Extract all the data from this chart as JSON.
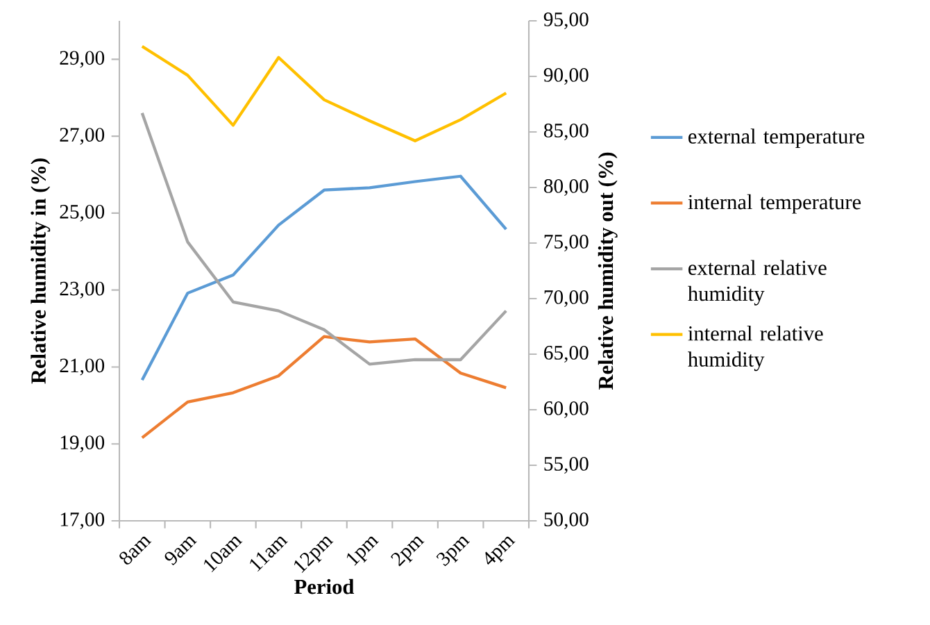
{
  "chart_data": {
    "type": "line",
    "xlabel": "Period",
    "ylabel": "Relative humidity in (%)",
    "y2label": "Relative humidity out (%)",
    "categories": [
      "8am",
      "9am",
      "10am",
      "11am",
      "12pm",
      "1pm",
      "2pm",
      "3pm",
      "4pm"
    ],
    "series": [
      {
        "name": "external temperature",
        "color": "#5b9bd5",
        "values": [
          20.66,
          22.92,
          23.39,
          24.69,
          25.6,
          25.66,
          25.82,
          25.96,
          24.58
        ]
      },
      {
        "name": "internal temperature",
        "color": "#ed7d31",
        "values": [
          19.16,
          20.09,
          20.33,
          20.77,
          21.79,
          21.65,
          21.73,
          20.84,
          20.46
        ]
      },
      {
        "name": "external relative humidity",
        "color": "#a5a5a5",
        "axis": "y2",
        "values": [
          86.7,
          75.1,
          69.7,
          68.9,
          67.2,
          64.1,
          64.5,
          64.5,
          68.9
        ]
      },
      {
        "name": "internal relative humidity",
        "color": "#ffc000",
        "axis": "y2",
        "values": [
          92.7,
          90.1,
          85.6,
          91.7,
          87.9,
          86.0,
          84.2,
          86.1,
          88.5
        ]
      }
    ],
    "ylim": [
      17,
      30
    ],
    "yticks": [
      {
        "value": 17,
        "label": "17,00"
      },
      {
        "value": 19,
        "label": "19,00"
      },
      {
        "value": 21,
        "label": "21,00"
      },
      {
        "value": 23,
        "label": "23,00"
      },
      {
        "value": 25,
        "label": "25,00"
      },
      {
        "value": 27,
        "label": "27,00"
      },
      {
        "value": 29,
        "label": "29,00"
      }
    ],
    "y2lim": [
      50,
      95
    ],
    "y2ticks": [
      {
        "value": 50,
        "label": "50,00"
      },
      {
        "value": 55,
        "label": "55,00"
      },
      {
        "value": 60,
        "label": "60,00"
      },
      {
        "value": 65,
        "label": "65,00"
      },
      {
        "value": 70,
        "label": "70,00"
      },
      {
        "value": 75,
        "label": "75,00"
      },
      {
        "value": 80,
        "label": "80,00"
      },
      {
        "value": 85,
        "label": "85,00"
      },
      {
        "value": 90,
        "label": "90,00"
      },
      {
        "value": 95,
        "label": "95,00"
      }
    ],
    "grid": false,
    "legend": "right"
  }
}
